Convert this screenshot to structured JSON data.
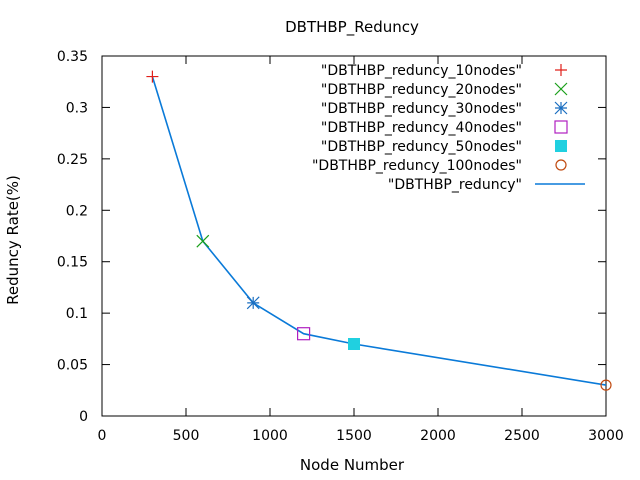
{
  "chart_data": {
    "type": "line",
    "title": "DBTHBP_Reduncy",
    "xlabel": "Node Number",
    "ylabel": "Reduncy Rate(%)",
    "xlim": [
      0,
      3000
    ],
    "ylim": [
      0,
      0.35
    ],
    "x_ticks": [
      "0",
      "500",
      "1000",
      "1500",
      "2000",
      "2500",
      "3000"
    ],
    "y_ticks": [
      "0",
      "0.05",
      "0.1",
      "0.15",
      "0.2",
      "0.25",
      "0.3",
      "0.35"
    ],
    "grid": false,
    "legend_position": "top-right",
    "series": [
      {
        "name": "\"DBTHBP_reduncy_10nodes\"",
        "marker": "plus",
        "color": "#e0201a",
        "points": [
          [
            300,
            0.33
          ]
        ]
      },
      {
        "name": "\"DBTHBP_reduncy_20nodes\"",
        "marker": "cross",
        "color": "#1aa01a",
        "points": [
          [
            600,
            0.17
          ]
        ]
      },
      {
        "name": "\"DBTHBP_reduncy_30nodes\"",
        "marker": "star",
        "color": "#1a6ec0",
        "points": [
          [
            900,
            0.11
          ]
        ]
      },
      {
        "name": "\"DBTHBP_reduncy_40nodes\"",
        "marker": "open-square",
        "color": "#b020c0",
        "points": [
          [
            1200,
            0.08
          ]
        ]
      },
      {
        "name": "\"DBTHBP_reduncy_50nodes\"",
        "marker": "filled-square",
        "color": "#20d0e0",
        "points": [
          [
            1500,
            0.07
          ]
        ]
      },
      {
        "name": "\"DBTHBP_reduncy_100nodes\"",
        "marker": "open-circle",
        "color": "#c04a10",
        "points": [
          [
            3000,
            0.03
          ]
        ]
      },
      {
        "name": "\"DBTHBP_reduncy\"",
        "marker": "line",
        "color": "#0a7ad8",
        "points": [
          [
            300,
            0.33
          ],
          [
            600,
            0.17
          ],
          [
            900,
            0.11
          ],
          [
            1200,
            0.08
          ],
          [
            1500,
            0.07
          ],
          [
            3000,
            0.03
          ]
        ]
      }
    ]
  }
}
